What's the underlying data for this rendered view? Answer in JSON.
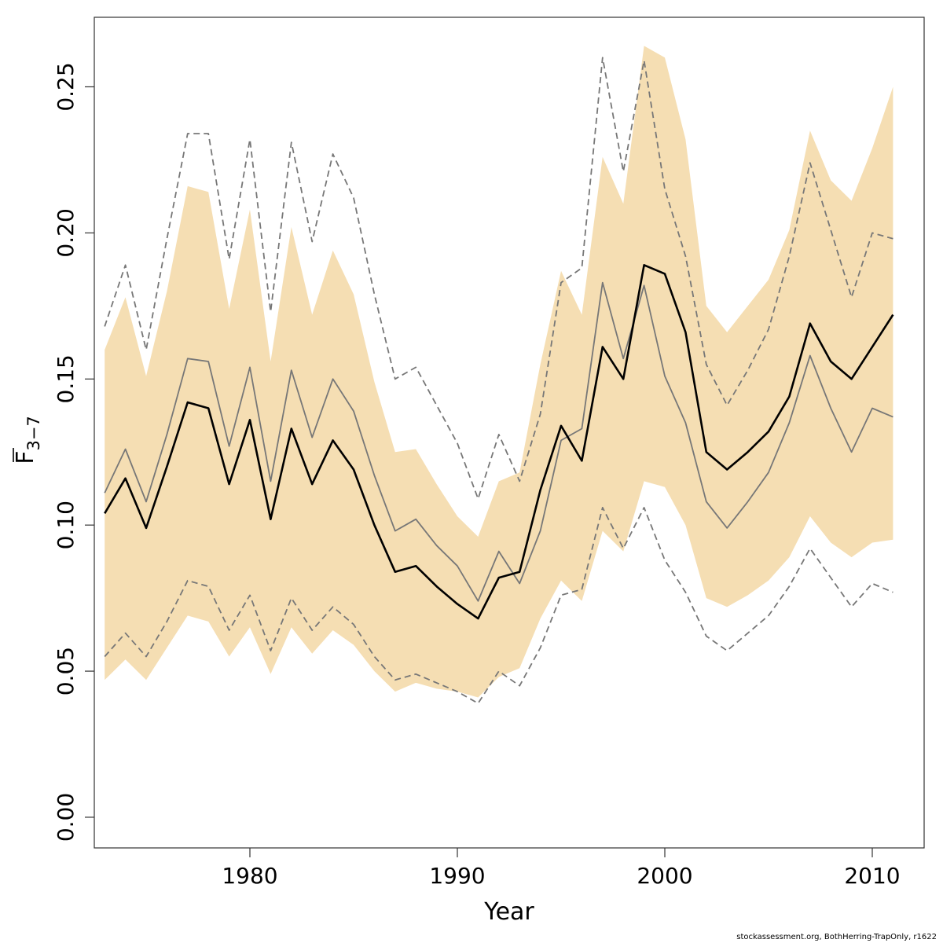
{
  "chart_data": {
    "type": "line",
    "xlabel": "Year",
    "ylabel": {
      "main": "F",
      "subscript": "3−7"
    },
    "xlim": [
      1972.5,
      2012.5
    ],
    "ylim": [
      -0.0105,
      0.2738
    ],
    "x_ticks": [
      1980,
      1990,
      2000,
      2010
    ],
    "y_ticks": [
      "0.00",
      "0.05",
      "0.10",
      "0.15",
      "0.20",
      "0.25"
    ],
    "band_color": "#f5deb3",
    "x": [
      1973,
      1974,
      1975,
      1976,
      1977,
      1978,
      1979,
      1980,
      1981,
      1982,
      1983,
      1984,
      1985,
      1986,
      1987,
      1988,
      1989,
      1990,
      1991,
      1992,
      1993,
      1994,
      1995,
      1996,
      1997,
      1998,
      1999,
      2000,
      2001,
      2002,
      2003,
      2004,
      2005,
      2006,
      2007,
      2008,
      2009,
      2010,
      2011
    ],
    "band": {
      "upper": [
        0.16,
        0.178,
        0.151,
        0.18,
        0.216,
        0.214,
        0.174,
        0.208,
        0.156,
        0.202,
        0.172,
        0.194,
        0.179,
        0.149,
        0.125,
        0.126,
        0.114,
        0.103,
        0.096,
        0.115,
        0.118,
        0.155,
        0.187,
        0.172,
        0.226,
        0.21,
        0.264,
        0.26,
        0.232,
        0.175,
        0.166,
        0.175,
        0.184,
        0.201,
        0.235,
        0.218,
        0.211,
        0.229,
        0.25
      ],
      "lower": [
        0.047,
        0.054,
        0.047,
        0.058,
        0.069,
        0.067,
        0.055,
        0.065,
        0.049,
        0.065,
        0.056,
        0.064,
        0.059,
        0.05,
        0.043,
        0.046,
        0.044,
        0.043,
        0.041,
        0.048,
        0.051,
        0.068,
        0.081,
        0.074,
        0.098,
        0.091,
        0.115,
        0.113,
        0.1,
        0.075,
        0.072,
        0.076,
        0.081,
        0.089,
        0.103,
        0.094,
        0.089,
        0.094,
        0.095
      ]
    },
    "series": [
      {
        "color": "#000000",
        "style": "solid",
        "width": 2.6,
        "values": [
          0.104,
          0.116,
          0.099,
          0.12,
          0.142,
          0.14,
          0.114,
          0.136,
          0.102,
          0.133,
          0.114,
          0.129,
          0.119,
          0.1,
          0.084,
          0.086,
          0.079,
          0.073,
          0.068,
          0.082,
          0.084,
          0.112,
          0.134,
          0.122,
          0.161,
          0.15,
          0.189,
          0.186,
          0.166,
          0.125,
          0.119,
          0.125,
          0.132,
          0.144,
          0.169,
          0.156,
          0.15,
          0.161,
          0.172
        ]
      },
      {
        "color": "#777777",
        "style": "solid",
        "width": 1.8,
        "values": [
          0.111,
          0.126,
          0.108,
          0.131,
          0.157,
          0.156,
          0.127,
          0.154,
          0.115,
          0.153,
          0.13,
          0.15,
          0.139,
          0.117,
          0.098,
          0.102,
          0.093,
          0.086,
          0.074,
          0.091,
          0.08,
          0.098,
          0.129,
          0.133,
          0.183,
          0.157,
          0.182,
          0.151,
          0.135,
          0.108,
          0.099,
          0.108,
          0.118,
          0.135,
          0.158,
          0.14,
          0.125,
          0.14,
          0.137
        ]
      },
      {
        "color": "#777777",
        "style": "dashed",
        "width": 1.8,
        "values": [
          0.168,
          0.189,
          0.16,
          0.198,
          0.234,
          0.234,
          0.191,
          0.232,
          0.173,
          0.231,
          0.197,
          0.227,
          0.212,
          0.179,
          0.15,
          0.154,
          0.141,
          0.128,
          0.109,
          0.131,
          0.115,
          0.138,
          0.183,
          0.188,
          0.26,
          0.221,
          0.259,
          0.215,
          0.192,
          0.155,
          0.141,
          0.153,
          0.167,
          0.192,
          0.224,
          0.201,
          0.178,
          0.2,
          0.198
        ]
      },
      {
        "color": "#777777",
        "style": "dashed",
        "width": 1.8,
        "values": [
          0.055,
          0.063,
          0.055,
          0.067,
          0.081,
          0.079,
          0.064,
          0.076,
          0.057,
          0.075,
          0.064,
          0.072,
          0.066,
          0.055,
          0.047,
          0.049,
          0.046,
          0.043,
          0.039,
          0.05,
          0.045,
          0.058,
          0.076,
          0.078,
          0.106,
          0.092,
          0.106,
          0.088,
          0.077,
          0.062,
          0.057,
          0.063,
          0.069,
          0.079,
          0.092,
          0.082,
          0.072,
          0.08,
          0.077
        ]
      }
    ]
  },
  "footer": "stockassessment.org, BothHerring-TrapOnly, r1622"
}
